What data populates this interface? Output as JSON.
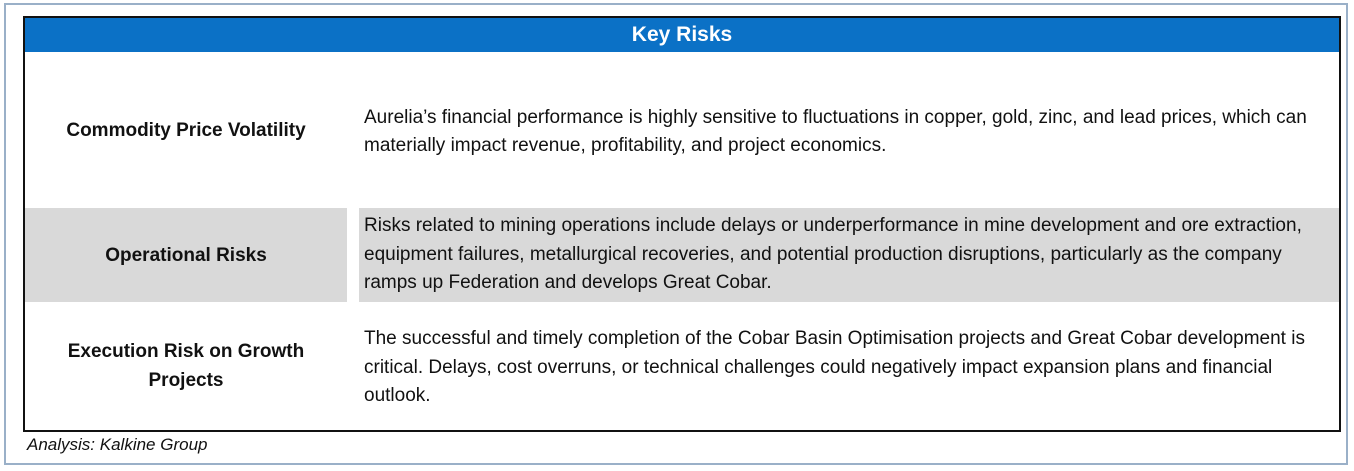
{
  "title": "Key Risks",
  "rows": [
    {
      "label": "Commodity Price Volatility",
      "description": "Aurelia’s financial performance is highly sensitive to fluctuations in copper, gold, zinc, and lead prices, which can materially impact revenue, profitability, and project economics."
    },
    {
      "label": "Operational Risks",
      "description": "Risks related to mining operations include delays or underperformance in mine development and ore extraction, equipment failures, metallurgical recoveries, and potential production disruptions, particularly as the company ramps up Federation and develops Great Cobar."
    },
    {
      "label": "Execution Risk on Growth Projects",
      "description": "The successful and timely completion of the Cobar Basin Optimisation projects and Great Cobar development is critical. Delays, cost overruns, or technical challenges could negatively impact expansion plans and financial outlook."
    }
  ],
  "source": "Analysis: Kalkine Group",
  "colors": {
    "header_bg": "#0b71c6",
    "header_text": "#ffffff",
    "shaded_row": "#d9d9d9",
    "frame_border": "#9ab0c8"
  }
}
